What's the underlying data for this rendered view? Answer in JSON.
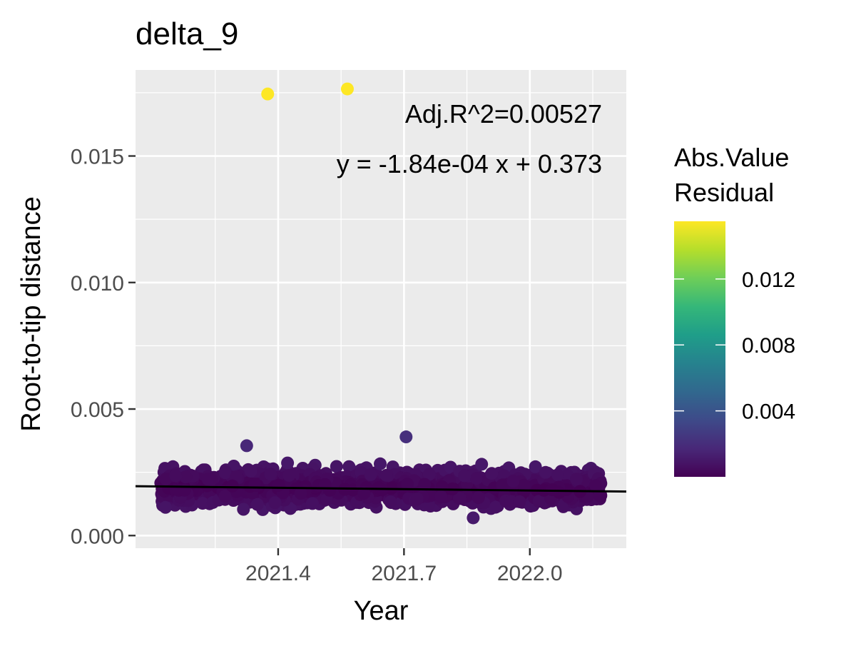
{
  "chart_data": {
    "type": "scatter",
    "title": "delta_9",
    "xlabel": "Year",
    "ylabel": "Root-to-tip distance",
    "xlim": [
      2021.06,
      2022.23
    ],
    "ylim": [
      -0.0005,
      0.0184
    ],
    "x_ticks": [
      2021.4,
      2021.7,
      2022.0
    ],
    "x_tick_labels": [
      "2021.4",
      "2021.7",
      "2022.0"
    ],
    "y_ticks": [
      0.0,
      0.005,
      0.01,
      0.015
    ],
    "y_tick_labels": [
      "0.000",
      "0.005",
      "0.010",
      "0.015"
    ],
    "grid": true,
    "annotations": {
      "r2": "Adj.R^2=0.00527",
      "equation": "y = -1.84e-04 x + 0.373"
    },
    "regression": {
      "x_start": 2021.06,
      "y_start": 0.00195,
      "x_end": 2022.23,
      "y_end": 0.00174
    },
    "colorbar": {
      "title_line1": "Abs.Value",
      "title_line2": "Residual",
      "min": 0.0,
      "max": 0.0155,
      "ticks": [
        0.004,
        0.008,
        0.012
      ],
      "tick_labels": [
        "0.004",
        "0.008",
        "0.012"
      ],
      "colors": [
        "#440154",
        "#482878",
        "#3E4A89",
        "#31688E",
        "#26828E",
        "#1F9E89",
        "#35B779",
        "#6ECE58",
        "#B5DE2B",
        "#FDE725"
      ]
    },
    "outliers": [
      {
        "x": 2021.375,
        "y": 0.01745,
        "residual": 0.0155
      },
      {
        "x": 2021.565,
        "y": 0.01765,
        "residual": 0.0157
      }
    ],
    "notable_points": [
      {
        "x": 2021.325,
        "y": 0.00355,
        "residual": 0.0017
      },
      {
        "x": 2021.705,
        "y": 0.0039,
        "residual": 0.0021
      },
      {
        "x": 2021.865,
        "y": 0.0007,
        "residual": 0.0011
      }
    ],
    "cloud": {
      "x_min": 2021.12,
      "x_max": 2022.17,
      "y_center": 0.0019,
      "y_spread": 0.0006,
      "y_min": 0.0003,
      "y_max": 0.0032,
      "count": 1600
    }
  }
}
